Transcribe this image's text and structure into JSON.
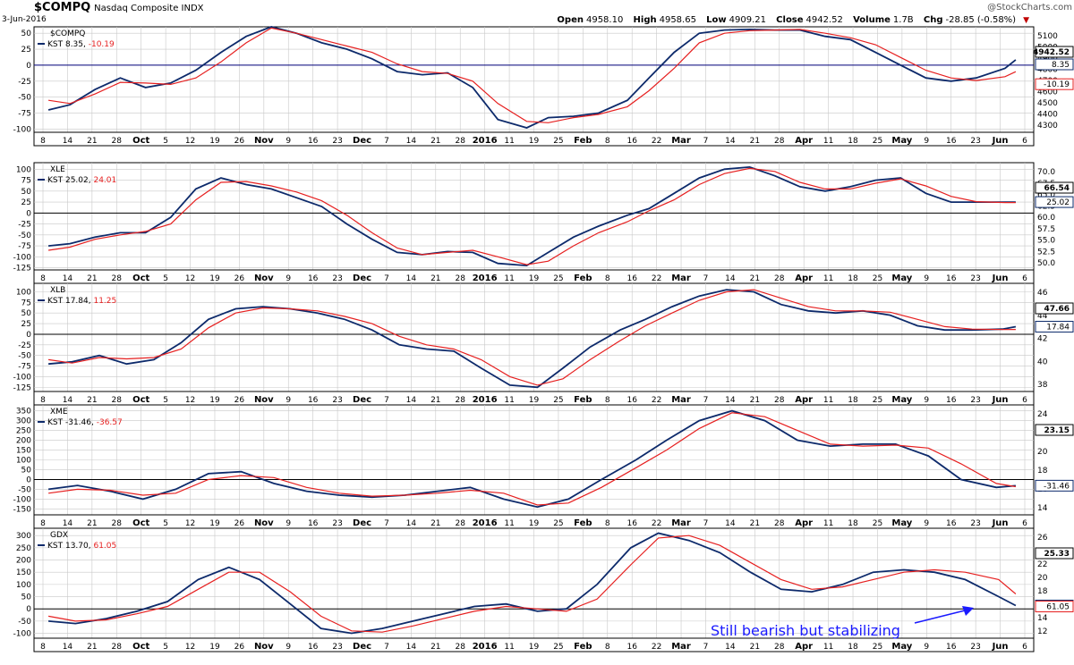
{
  "header": {
    "symbol": "$COMPQ",
    "name": "Nasdaq Composite INDX",
    "date": "3-Jun-2016",
    "open_label": "Open",
    "open": "4958.10",
    "high_label": "High",
    "high": "4958.65",
    "low_label": "Low",
    "low": "4909.21",
    "close_label": "Close",
    "close": "4942.52",
    "volume_label": "Volume",
    "volume": "1.7B",
    "chg_label": "Chg",
    "chg": "-28.85 (-0.58%)",
    "brand": "@StockCharts.com"
  },
  "annotation": "Still bearish but stabilizing",
  "colors": {
    "kst": "#0d2a6b",
    "signal": "#e62020",
    "annotation": "#1a1aff",
    "grid": "#c8c8c8"
  },
  "chart_data": {
    "type": "line",
    "x_dates": [
      "2015-09-08",
      "2015-09-14",
      "2015-09-21",
      "2015-09-28",
      "2015-10-05",
      "2015-10-12",
      "2015-10-19",
      "2015-10-26",
      "2015-11-02",
      "2015-11-09",
      "2015-11-16",
      "2015-11-23",
      "2015-11-30",
      "2015-12-07",
      "2015-12-14",
      "2015-12-21",
      "2015-12-28",
      "2016-01-04",
      "2016-01-11",
      "2016-01-19",
      "2016-01-25",
      "2016-02-01",
      "2016-02-08",
      "2016-02-16",
      "2016-02-22",
      "2016-02-29",
      "2016-03-07",
      "2016-03-14",
      "2016-03-21",
      "2016-03-28",
      "2016-04-04",
      "2016-04-11",
      "2016-04-18",
      "2016-04-25",
      "2016-05-02",
      "2016-05-09",
      "2016-05-16",
      "2016-05-23",
      "2016-05-31",
      "2016-06-03"
    ],
    "x_tick_labels": [
      "8",
      "14",
      "21",
      "28",
      "Oct",
      "5",
      "12",
      "19",
      "26",
      "Nov",
      "9",
      "16",
      "23",
      "Dec",
      "7",
      "14",
      "21",
      "28",
      "2016",
      "11",
      "19",
      "25",
      "Feb",
      "8",
      "16",
      "22",
      "Mar",
      "7",
      "14",
      "21",
      "28",
      "Apr",
      "11",
      "18",
      "25",
      "May",
      "9",
      "16",
      "23",
      "Jun",
      "6"
    ],
    "x_tick_bold": [
      "Oct",
      "Nov",
      "Dec",
      "2016",
      "Feb",
      "Mar",
      "Apr",
      "May",
      "Jun"
    ],
    "panels": [
      {
        "title": "$COMPQ",
        "legend_name": "KST",
        "kst_last": "8.35",
        "signal_last": "-10.19",
        "kst_badge": "8.35",
        "signal_badge": "-10.19",
        "price_badge": "4942.52",
        "ylim": [
          -105,
          60
        ],
        "y_ticks": [
          "50",
          "25",
          "0",
          "-25",
          "-50",
          "-75",
          "-100"
        ],
        "right_ticks": [
          "5100",
          "5000",
          "4900",
          "4800",
          "4700",
          "4600",
          "4500",
          "4400",
          "4300"
        ],
        "series": [
          {
            "name": "KST",
            "values": [
              -70,
              -62,
              -38,
              -20,
              -35,
              -28,
              -8,
              20,
              45,
              60,
              50,
              35,
              25,
              10,
              -10,
              -15,
              -12,
              -35,
              -85,
              -98,
              -82,
              -80,
              -75,
              -55,
              -20,
              20,
              50,
              55,
              56,
              55,
              55,
              45,
              40,
              20,
              0,
              -20,
              -25,
              -20,
              -5,
              8.35
            ]
          },
          {
            "name": "Signal",
            "values": [
              -55,
              -60,
              -45,
              -27,
              -28,
              -30,
              -20,
              5,
              35,
              58,
              50,
              40,
              30,
              20,
              2,
              -10,
              -13,
              -25,
              -60,
              -88,
              -90,
              -82,
              -77,
              -65,
              -40,
              -5,
              35,
              50,
              54,
              55,
              56,
              50,
              43,
              32,
              12,
              -8,
              -20,
              -24,
              -18,
              -10.19
            ]
          }
        ]
      },
      {
        "title": "XLE",
        "legend_name": "KST",
        "kst_last": "25.02",
        "signal_last": "24.01",
        "kst_badge": "25.02",
        "price_badge": "66.54",
        "ylim": [
          -130,
          115
        ],
        "y_ticks": [
          "100",
          "75",
          "50",
          "25",
          "0",
          "-25",
          "-50",
          "-75",
          "-100",
          "-125"
        ],
        "right_ticks": [
          "70.0",
          "67.5",
          "65.0",
          "62.5",
          "60.0",
          "57.5",
          "55.0",
          "52.5",
          "50.0"
        ],
        "series": [
          {
            "name": "KST",
            "values": [
              -75,
              -70,
              -55,
              -45,
              -45,
              -10,
              55,
              80,
              65,
              55,
              35,
              15,
              -25,
              -60,
              -90,
              -95,
              -88,
              -90,
              -115,
              -120,
              -90,
              -55,
              -30,
              -5,
              10,
              45,
              80,
              100,
              105,
              85,
              60,
              50,
              60,
              75,
              80,
              45,
              25,
              25,
              25,
              25.02
            ]
          },
          {
            "name": "Signal",
            "values": [
              -85,
              -78,
              -60,
              -50,
              -42,
              -25,
              30,
              70,
              72,
              62,
              48,
              28,
              -5,
              -45,
              -80,
              -95,
              -90,
              -85,
              -100,
              -118,
              -110,
              -75,
              -45,
              -20,
              5,
              30,
              65,
              90,
              102,
              95,
              70,
              55,
              55,
              68,
              78,
              62,
              38,
              26,
              24,
              24.01
            ]
          }
        ]
      },
      {
        "title": "XLB",
        "legend_name": "KST",
        "kst_last": "17.84",
        "signal_last": "11.25",
        "kst_badge": "17.84",
        "price_badge": "47.66",
        "ylim": [
          -135,
          120
        ],
        "y_ticks": [
          "100",
          "75",
          "50",
          "25",
          "0",
          "-25",
          "-50",
          "-75",
          "-100",
          "-125"
        ],
        "right_ticks": [
          "46",
          "44",
          "42",
          "40",
          "38"
        ],
        "series": [
          {
            "name": "KST",
            "values": [
              -70,
              -65,
              -50,
              -70,
              -60,
              -20,
              35,
              60,
              65,
              60,
              50,
              35,
              10,
              -25,
              -35,
              -40,
              -80,
              -120,
              -125,
              -80,
              -30,
              10,
              35,
              65,
              90,
              105,
              100,
              70,
              55,
              50,
              55,
              45,
              20,
              10,
              10,
              12,
              17.84
            ]
          },
          {
            "name": "Signal",
            "values": [
              -60,
              -68,
              -55,
              -58,
              -55,
              -35,
              15,
              50,
              62,
              60,
              55,
              42,
              25,
              -5,
              -25,
              -35,
              -60,
              -100,
              -120,
              -105,
              -60,
              -15,
              20,
              50,
              80,
              100,
              105,
              85,
              65,
              55,
              55,
              52,
              35,
              18,
              12,
              11,
              11.25
            ]
          }
        ]
      },
      {
        "title": "XME",
        "legend_name": "KST",
        "kst_last": "-31.46",
        "signal_last": "-36.57",
        "kst_badge": "-31.46",
        "price_badge": "23.15",
        "ylim": [
          -180,
          380
        ],
        "y_ticks": [
          "350",
          "300",
          "250",
          "200",
          "150",
          "100",
          "50",
          "0",
          "-50",
          "-100",
          "-150"
        ],
        "right_ticks": [
          "24",
          "22",
          "20",
          "18",
          "16",
          "14"
        ],
        "series": [
          {
            "name": "KST",
            "values": [
              -50,
              -30,
              -60,
              -100,
              -50,
              30,
              40,
              -20,
              -60,
              -80,
              -90,
              -80,
              -60,
              -40,
              -100,
              -140,
              -100,
              0,
              100,
              200,
              300,
              350,
              300,
              200,
              170,
              180,
              180,
              120,
              0,
              -40,
              -31.46
            ]
          },
          {
            "name": "Signal",
            "values": [
              -70,
              -50,
              -55,
              -80,
              -70,
              0,
              20,
              10,
              -40,
              -70,
              -85,
              -80,
              -70,
              -55,
              -70,
              -130,
              -120,
              -40,
              60,
              150,
              260,
              340,
              320,
              250,
              180,
              170,
              175,
              160,
              80,
              -20,
              -36.57
            ]
          }
        ]
      },
      {
        "title": "GDX",
        "legend_name": "KST",
        "kst_last": "13.70",
        "signal_last": "61.05",
        "kst_badge": "13.70",
        "signal_badge": "61.05",
        "price_badge": "25.33",
        "ylim": [
          -120,
          330
        ],
        "y_ticks": [
          "300",
          "250",
          "200",
          "150",
          "100",
          "50",
          "0",
          "-50",
          "-100"
        ],
        "right_ticks": [
          "26",
          "24",
          "22",
          "20",
          "18",
          "16",
          "14",
          "12"
        ],
        "series": [
          {
            "name": "KST",
            "values": [
              -50,
              -60,
              -40,
              -10,
              30,
              120,
              170,
              120,
              20,
              -80,
              -100,
              -80,
              -50,
              -20,
              10,
              20,
              -10,
              0,
              100,
              250,
              310,
              280,
              230,
              150,
              80,
              70,
              100,
              150,
              160,
              150,
              120,
              50,
              13.7
            ]
          },
          {
            "name": "Signal",
            "values": [
              -30,
              -50,
              -45,
              -20,
              10,
              80,
              150,
              150,
              70,
              -30,
              -90,
              -95,
              -70,
              -40,
              -10,
              10,
              0,
              -10,
              40,
              180,
              290,
              300,
              260,
              190,
              120,
              80,
              90,
              120,
              150,
              160,
              150,
              120,
              61.05
            ]
          }
        ]
      }
    ]
  }
}
